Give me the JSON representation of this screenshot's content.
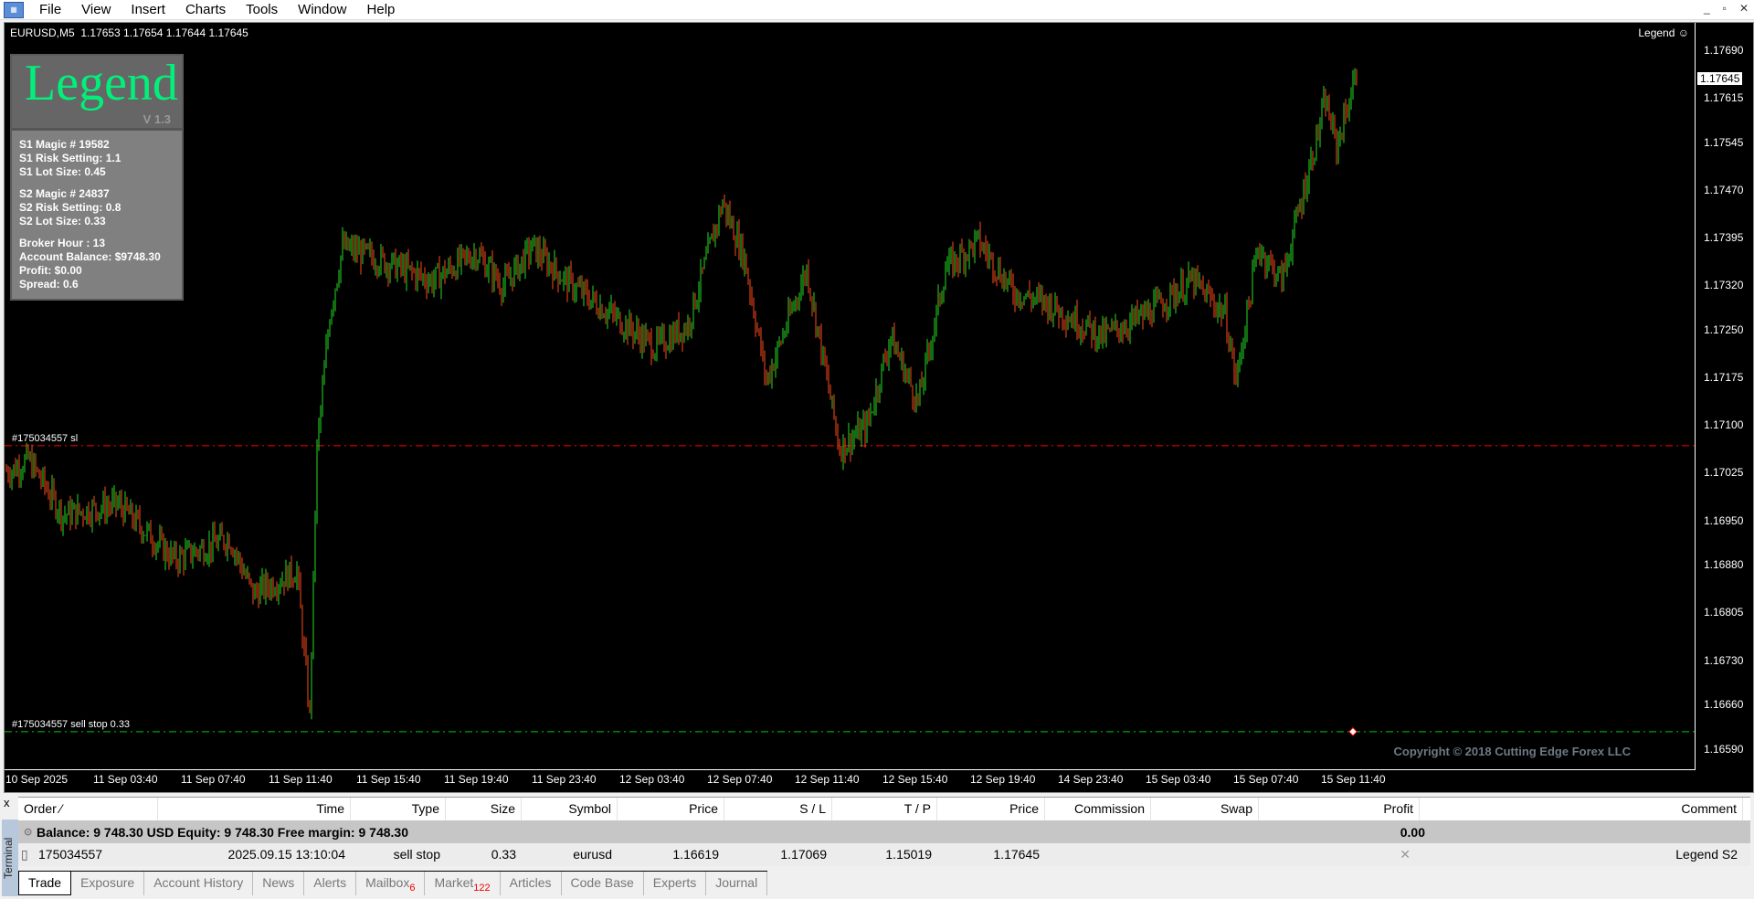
{
  "menu": [
    "File",
    "View",
    "Insert",
    "Charts",
    "Tools",
    "Window",
    "Help"
  ],
  "window_controls": [
    "_",
    "▫",
    "✕"
  ],
  "chart": {
    "title": "EURUSD,M5  1.17653 1.17654 1.17644 1.17645",
    "ea_name": "Legend ☺",
    "current_price": "1.17645",
    "price_axis": [
      "1.17690",
      "1.17615",
      "1.17545",
      "1.17470",
      "1.17395",
      "1.17320",
      "1.17250",
      "1.17175",
      "1.17100",
      "1.17025",
      "1.16950",
      "1.16880",
      "1.16805",
      "1.16730",
      "1.16660",
      "1.16590"
    ],
    "time_axis": [
      "10 Sep 2025",
      "11 Sep 03:40",
      "11 Sep 07:40",
      "11 Sep 11:40",
      "11 Sep 15:40",
      "11 Sep 19:40",
      "11 Sep 23:40",
      "12 Sep 03:40",
      "12 Sep 07:40",
      "12 Sep 11:40",
      "12 Sep 15:40",
      "12 Sep 19:40",
      "14 Sep 23:40",
      "15 Sep 03:40",
      "15 Sep 07:40",
      "15 Sep 11:40"
    ],
    "sl_line": {
      "label": "#175034557 sl",
      "price": 1.17069,
      "color": "#ff0000"
    },
    "order_line": {
      "label": "#175034557 sell stop 0.33",
      "price": 1.16619,
      "color": "#00c800"
    },
    "up_color": "#22dd22",
    "down_color": "#ff4a1a",
    "copyright": "Copyright © 2018 Cutting Edge Forex LLC",
    "price_path": [
      [
        3,
        1.1703
      ],
      [
        12,
        1.17048
      ],
      [
        31,
        1.1696
      ],
      [
        61,
        1.16977
      ],
      [
        92,
        1.1689
      ],
      [
        122,
        1.16924
      ],
      [
        135,
        1.16836
      ],
      [
        159,
        1.16872
      ],
      [
        166,
        1.16643
      ],
      [
        170,
        1.17065
      ],
      [
        177,
        1.17276
      ],
      [
        184,
        1.17382
      ],
      [
        202,
        1.17364
      ],
      [
        233,
        1.17329
      ],
      [
        257,
        1.17373
      ],
      [
        272,
        1.1732
      ],
      [
        288,
        1.17382
      ],
      [
        306,
        1.17329
      ],
      [
        331,
        1.17276
      ],
      [
        355,
        1.17224
      ],
      [
        373,
        1.17259
      ],
      [
        392,
        1.17452
      ],
      [
        404,
        1.17364
      ],
      [
        416,
        1.17171
      ],
      [
        438,
        1.17347
      ],
      [
        456,
        1.17065
      ],
      [
        471,
        1.171
      ],
      [
        484,
        1.17241
      ],
      [
        499,
        1.17136
      ],
      [
        514,
        1.17347
      ],
      [
        532,
        1.17391
      ],
      [
        551,
        1.17312
      ],
      [
        569,
        1.17294
      ],
      [
        600,
        1.17241
      ],
      [
        624,
        1.17276
      ],
      [
        649,
        1.17329
      ],
      [
        667,
        1.17276
      ],
      [
        673,
        1.17171
      ],
      [
        685,
        1.17382
      ],
      [
        698,
        1.17329
      ],
      [
        710,
        1.1747
      ],
      [
        722,
        1.17611
      ],
      [
        728,
        1.1754
      ],
      [
        739,
        1.17655
      ]
    ]
  },
  "legend_panel": {
    "logo": "Legend",
    "version": "V 1.3",
    "s1": [
      "S1 Magic # 19582",
      "S1 Risk Setting: 1.1",
      "S1 Lot Size: 0.45"
    ],
    "s2": [
      "S2 Magic # 24837",
      "S2 Risk Setting: 0.8",
      "S2 Lot Size: 0.33"
    ],
    "info": [
      "Broker Hour : 13",
      "Account Balance: $9748.30",
      "Profit: $0.00",
      "Spread:  0.6"
    ]
  },
  "terminal": {
    "side_label": "Terminal",
    "close": "x",
    "columns": [
      "Order  ⁄",
      "Time",
      "Type",
      "Size",
      "Symbol",
      "Price",
      "S / L",
      "T / P",
      "Price",
      "Commission",
      "Swap",
      "Profit",
      "Comment"
    ],
    "balance_text": "Balance: 9 748.30 USD  Equity: 9 748.30  Free margin: 9 748.30",
    "balance_profit": "0.00",
    "order": {
      "order": "175034557",
      "time": "2025.09.15 13:10:04",
      "type": "sell stop",
      "size": "0.33",
      "symbol": "eurusd",
      "price": "1.16619",
      "sl": "1.17069",
      "tp": "1.15019",
      "cur_price": "1.17645",
      "commission": "",
      "swap": "",
      "profit": "✕",
      "comment": "Legend  S2"
    },
    "tabs": [
      {
        "label": "Trade"
      },
      {
        "label": "Exposure"
      },
      {
        "label": "Account History"
      },
      {
        "label": "News"
      },
      {
        "label": "Alerts"
      },
      {
        "label": "Mailbox",
        "badge": "6"
      },
      {
        "label": "Market",
        "badge": "122"
      },
      {
        "label": "Articles"
      },
      {
        "label": "Code Base"
      },
      {
        "label": "Experts"
      },
      {
        "label": "Journal"
      }
    ]
  }
}
